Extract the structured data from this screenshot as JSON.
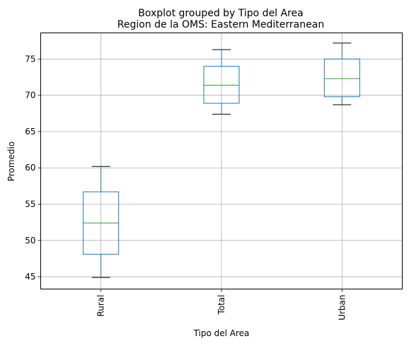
{
  "chart_data": {
    "type": "boxplot",
    "suptitle": "Boxplot grouped by Tipo del Area",
    "title": "Region de la OMS: Eastern Mediterranean",
    "xlabel": "Tipo del Area",
    "ylabel": "Promedio",
    "ylim": [
      43.3,
      78.6
    ],
    "yticks": [
      45,
      50,
      55,
      60,
      65,
      70,
      75
    ],
    "grid": true,
    "categories": [
      "Rural",
      "Total",
      "Urban"
    ],
    "boxes": [
      {
        "category": "Rural",
        "whislo": 44.9,
        "q1": 48.1,
        "med": 52.4,
        "q3": 56.7,
        "whishi": 60.2
      },
      {
        "category": "Total",
        "whislo": 67.4,
        "q1": 68.9,
        "med": 71.4,
        "q3": 74.0,
        "whishi": 76.3
      },
      {
        "category": "Urban",
        "whislo": 68.7,
        "q1": 69.8,
        "med": 72.3,
        "q3": 75.0,
        "whishi": 77.2
      }
    ],
    "colors": {
      "box": "#1f77b4",
      "median": "#2ca02c",
      "whisker_cap": "#000000",
      "grid": "#b0b0b0"
    }
  }
}
